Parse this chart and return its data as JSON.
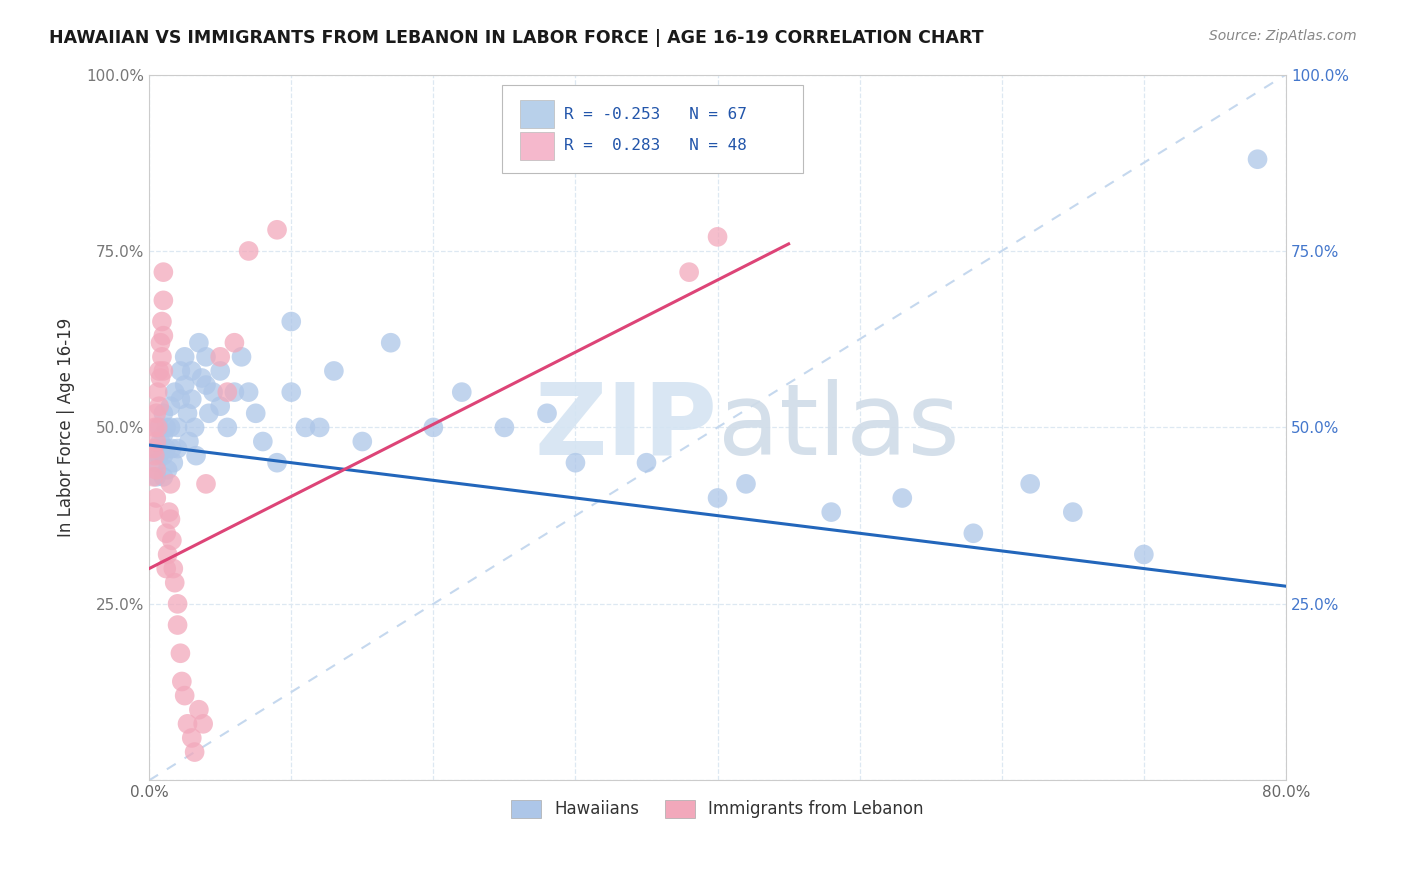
{
  "title": "HAWAIIAN VS IMMIGRANTS FROM LEBANON IN LABOR FORCE | AGE 16-19 CORRELATION CHART",
  "source": "Source: ZipAtlas.com",
  "ylabel": "In Labor Force | Age 16-19",
  "xmin": 0.0,
  "xmax": 0.8,
  "ymin": 0.0,
  "ymax": 1.0,
  "hawaiians_color": "#adc6e8",
  "lebanon_color": "#f2a8bb",
  "hawaiians_line_color": "#2266bb",
  "lebanon_line_color": "#dd4477",
  "ref_line_color": "#c5d8ee",
  "legend_box_hawaiians": "#b8d0ea",
  "legend_box_lebanon": "#f5b8cc",
  "legend_text_color": "#2255aa",
  "R_hawaiians": -0.253,
  "N_hawaiians": 67,
  "R_lebanon": 0.283,
  "N_lebanon": 48,
  "hawaiians_trend_x0": 0.0,
  "hawaiians_trend_y0": 0.475,
  "hawaiians_trend_x1": 0.8,
  "hawaiians_trend_y1": 0.275,
  "lebanon_trend_x0": 0.0,
  "lebanon_trend_y0": 0.3,
  "lebanon_trend_x1": 0.45,
  "lebanon_trend_y1": 0.76,
  "hawaiians_x": [
    0.005,
    0.005,
    0.005,
    0.007,
    0.007,
    0.008,
    0.01,
    0.01,
    0.01,
    0.01,
    0.012,
    0.012,
    0.013,
    0.015,
    0.015,
    0.016,
    0.017,
    0.018,
    0.02,
    0.02,
    0.022,
    0.022,
    0.025,
    0.025,
    0.027,
    0.028,
    0.03,
    0.03,
    0.032,
    0.033,
    0.035,
    0.037,
    0.04,
    0.04,
    0.042,
    0.045,
    0.05,
    0.05,
    0.055,
    0.06,
    0.065,
    0.07,
    0.075,
    0.08,
    0.09,
    0.1,
    0.1,
    0.11,
    0.12,
    0.13,
    0.15,
    0.17,
    0.2,
    0.22,
    0.25,
    0.28,
    0.3,
    0.35,
    0.4,
    0.42,
    0.48,
    0.53,
    0.58,
    0.62,
    0.65,
    0.7,
    0.78
  ],
  "hawaiians_y": [
    0.47,
    0.45,
    0.43,
    0.5,
    0.46,
    0.48,
    0.52,
    0.49,
    0.46,
    0.43,
    0.5,
    0.47,
    0.44,
    0.53,
    0.5,
    0.47,
    0.45,
    0.55,
    0.5,
    0.47,
    0.58,
    0.54,
    0.6,
    0.56,
    0.52,
    0.48,
    0.58,
    0.54,
    0.5,
    0.46,
    0.62,
    0.57,
    0.6,
    0.56,
    0.52,
    0.55,
    0.58,
    0.53,
    0.5,
    0.55,
    0.6,
    0.55,
    0.52,
    0.48,
    0.45,
    0.65,
    0.55,
    0.5,
    0.5,
    0.58,
    0.48,
    0.62,
    0.5,
    0.55,
    0.5,
    0.52,
    0.45,
    0.45,
    0.4,
    0.42,
    0.38,
    0.4,
    0.35,
    0.42,
    0.38,
    0.32,
    0.88
  ],
  "lebanon_x": [
    0.003,
    0.003,
    0.003,
    0.004,
    0.004,
    0.005,
    0.005,
    0.005,
    0.005,
    0.006,
    0.006,
    0.007,
    0.007,
    0.008,
    0.008,
    0.009,
    0.009,
    0.01,
    0.01,
    0.01,
    0.01,
    0.012,
    0.012,
    0.013,
    0.014,
    0.015,
    0.015,
    0.016,
    0.017,
    0.018,
    0.02,
    0.02,
    0.022,
    0.023,
    0.025,
    0.027,
    0.03,
    0.032,
    0.035,
    0.038,
    0.04,
    0.05,
    0.055,
    0.06,
    0.07,
    0.09,
    0.38,
    0.4
  ],
  "lebanon_y": [
    0.47,
    0.43,
    0.38,
    0.5,
    0.46,
    0.52,
    0.48,
    0.44,
    0.4,
    0.55,
    0.5,
    0.58,
    0.53,
    0.62,
    0.57,
    0.65,
    0.6,
    0.68,
    0.63,
    0.58,
    0.72,
    0.3,
    0.35,
    0.32,
    0.38,
    0.42,
    0.37,
    0.34,
    0.3,
    0.28,
    0.25,
    0.22,
    0.18,
    0.14,
    0.12,
    0.08,
    0.06,
    0.04,
    0.1,
    0.08,
    0.42,
    0.6,
    0.55,
    0.62,
    0.75,
    0.78,
    0.72,
    0.77
  ],
  "background_color": "#ffffff",
  "grid_color": "#dde8f2"
}
